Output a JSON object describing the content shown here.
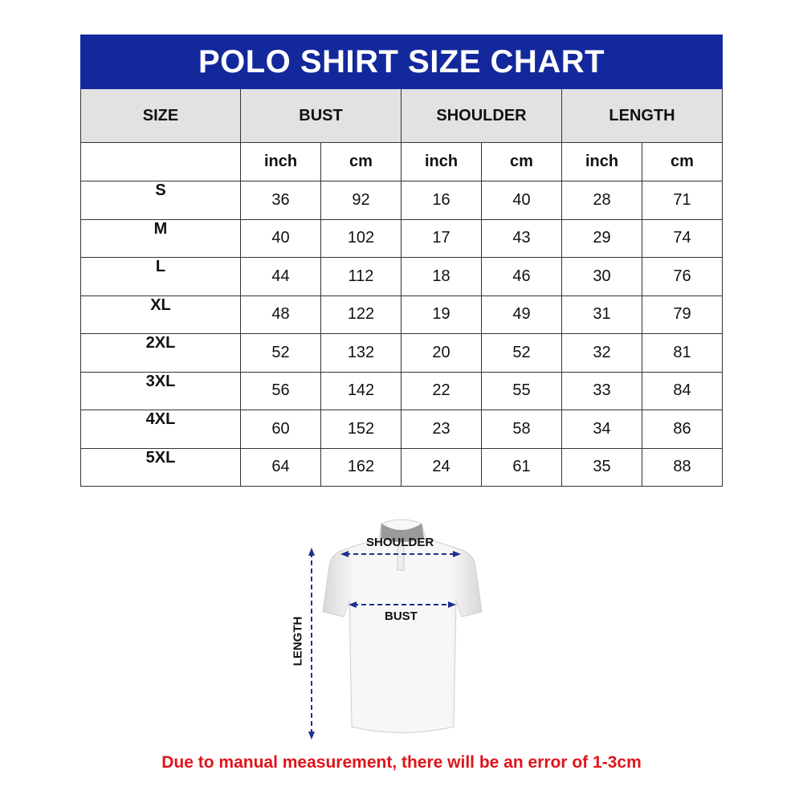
{
  "title": "POLO SHIRT SIZE CHART",
  "headers": [
    "SIZE",
    "BUST",
    "SHOULDER",
    "LENGTH"
  ],
  "units": [
    "inch",
    "cm",
    "inch",
    "cm",
    "inch",
    "cm"
  ],
  "rows": [
    {
      "size": "S",
      "values": [
        "36",
        "92",
        "16",
        "40",
        "28",
        "71"
      ]
    },
    {
      "size": "M",
      "values": [
        "40",
        "102",
        "17",
        "43",
        "29",
        "74"
      ]
    },
    {
      "size": "L",
      "values": [
        "44",
        "112",
        "18",
        "46",
        "30",
        "76"
      ]
    },
    {
      "size": "XL",
      "values": [
        "48",
        "122",
        "19",
        "49",
        "31",
        "79"
      ]
    },
    {
      "size": "2XL",
      "values": [
        "52",
        "132",
        "20",
        "52",
        "32",
        "81"
      ]
    },
    {
      "size": "3XL",
      "values": [
        "56",
        "142",
        "22",
        "55",
        "33",
        "84"
      ]
    },
    {
      "size": "4XL",
      "values": [
        "60",
        "152",
        "23",
        "58",
        "34",
        "86"
      ]
    },
    {
      "size": "5XL",
      "values": [
        "64",
        "162",
        "24",
        "61",
        "35",
        "88"
      ]
    }
  ],
  "diagram": {
    "shoulder": "SHOULDER",
    "bust": "BUST",
    "length": "LENGTH"
  },
  "note": "Due to manual measurement, there will be an error of 1-3cm",
  "colors": {
    "title_bg": "#13289b",
    "header_bg": "#e2e2e2",
    "note": "#e0141b",
    "arrow": "#1f2f8f"
  }
}
